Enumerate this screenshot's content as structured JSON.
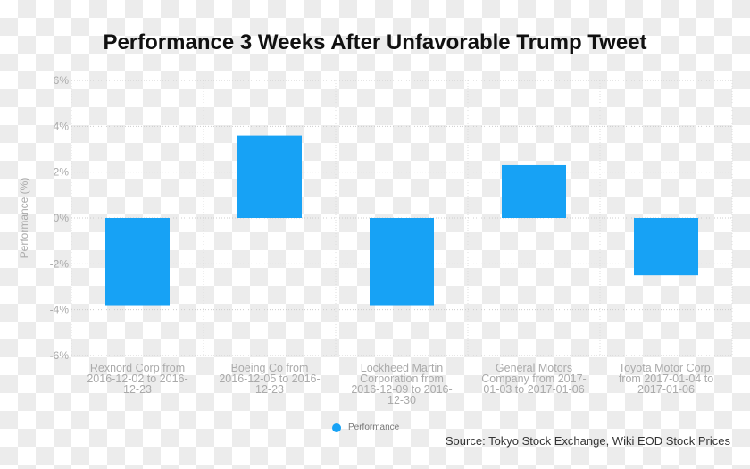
{
  "chart_data": {
    "type": "bar",
    "title": "Performance 3 Weeks After Unfavorable Trump Tweet",
    "ylabel": "Performance (%)",
    "xlabel": "",
    "ylim": [
      -6,
      6
    ],
    "yticks": [
      6,
      4,
      2,
      0,
      -2,
      -4,
      -6
    ],
    "ytick_labels": [
      "6%",
      "4%",
      "2%",
      "0%",
      "-2%",
      "-4%",
      "-6%"
    ],
    "grid": true,
    "legend_placement": "bottom",
    "categories": [
      [
        "Rexnord Corp from",
        "2016-12-02 to 2016-",
        "12-23"
      ],
      [
        "Boeing Co from",
        "2016-12-05 to 2016-",
        "12-23"
      ],
      [
        "Lockheed Martin",
        "Corporation from",
        "2016-12-09 to 2016-",
        "12-30"
      ],
      [
        "General Motors",
        "Company from 2017-",
        "01-03 to 2017-01-06"
      ],
      [
        "Toyota Motor Corp.",
        "from 2017-01-04 to",
        "2017-01-06"
      ]
    ],
    "series": [
      {
        "name": "Performance",
        "color": "#17a2f5",
        "values": [
          -3.8,
          3.6,
          -3.8,
          2.3,
          -2.5
        ]
      }
    ],
    "source": "Source: Tokyo Stock Exchange, Wiki EOD Stock Prices"
  }
}
